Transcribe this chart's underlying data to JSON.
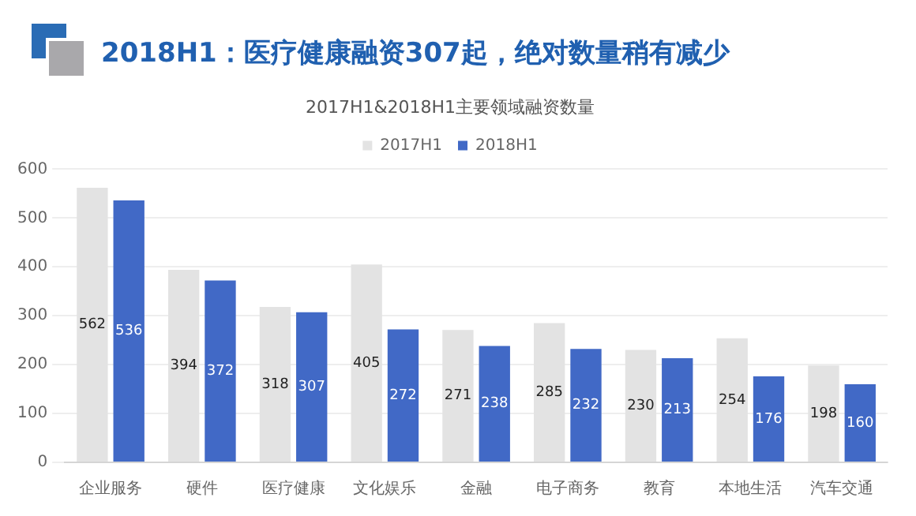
{
  "chart_data": {
    "type": "bar",
    "title": "2018H1：医疗健康融资307起，绝对数量稍有减少",
    "subtitle": "2017H1&2018H1主要领域融资数量",
    "categories": [
      "企业服务",
      "硬件",
      "医疗健康",
      "文化娱乐",
      "金融",
      "电子商务",
      "教育",
      "本地生活",
      "汽车交通"
    ],
    "series": [
      {
        "name": "2017H1",
        "color": "#e3e3e3",
        "values": [
          562,
          394,
          318,
          405,
          271,
          285,
          230,
          254,
          198
        ]
      },
      {
        "name": "2018H1",
        "color": "#4169c6",
        "values": [
          536,
          372,
          307,
          272,
          238,
          232,
          213,
          176,
          160
        ]
      }
    ],
    "ylim": [
      0,
      600
    ],
    "yticks": [
      0,
      100,
      200,
      300,
      400,
      500,
      600
    ],
    "grid": "y",
    "legend": "top",
    "data_labels": true
  }
}
